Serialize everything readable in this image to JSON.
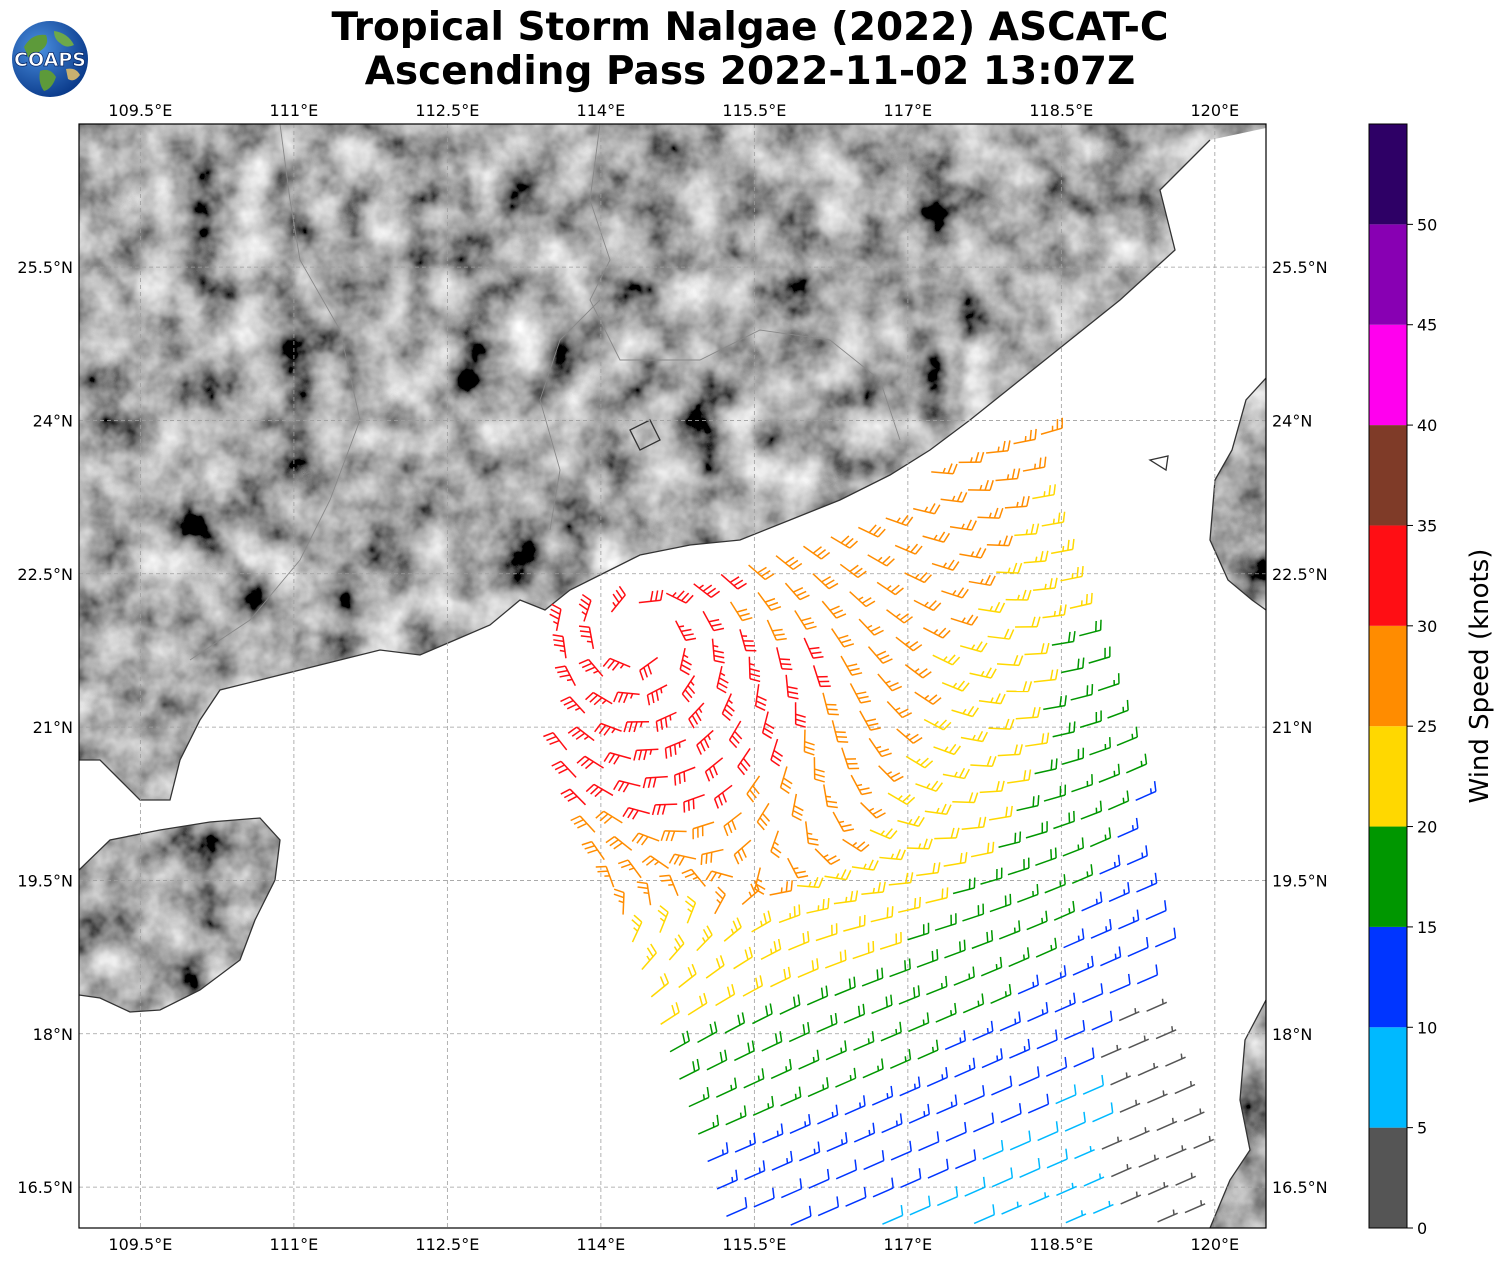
{
  "title_line1": "Tropical Storm Nalgae (2022) ASCAT-C",
  "title_line2": "Ascending Pass 2022-11-02 13:07Z",
  "logo_text": "COAPS",
  "axes": {
    "lon_ticks": [
      "109.5°E",
      "111°E",
      "112.5°E",
      "114°E",
      "115.5°E",
      "117°E",
      "118.5°E",
      "120°E"
    ],
    "lat_ticks": [
      "25.5°N",
      "24°N",
      "22.5°N",
      "21°N",
      "19.5°N",
      "18°N",
      "16.5°N"
    ],
    "lon_range": [
      108.9,
      120.5
    ],
    "lat_range": [
      16.1,
      26.9
    ],
    "grid": "dashed gray"
  },
  "colorbar": {
    "label": "Wind Speed (knots)",
    "ticks": [
      "0",
      "5",
      "10",
      "15",
      "20",
      "25",
      "30",
      "35",
      "40",
      "45",
      "50"
    ],
    "range": [
      0,
      55
    ],
    "colors": [
      "#555555",
      "#00b9ff",
      "#0035ff",
      "#009700",
      "#ffd800",
      "#ff8c00",
      "#ff0e14",
      "#7f3b28",
      "#ff00ee",
      "#8800b3",
      "#2e0066"
    ]
  },
  "storm_center": [
    114.4,
    21.9
  ]
}
